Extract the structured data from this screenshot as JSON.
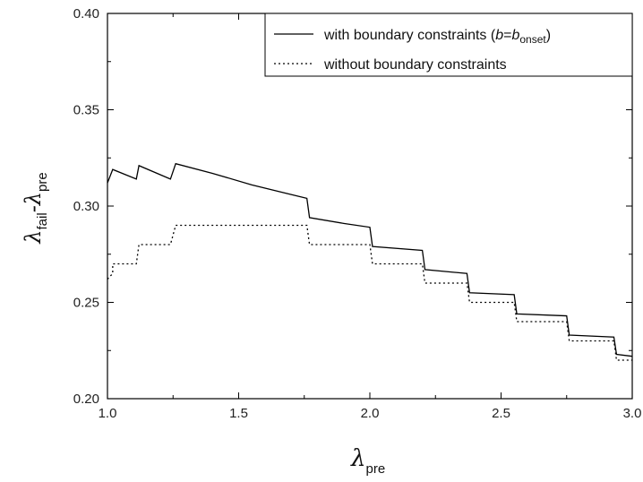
{
  "chart_data": {
    "type": "line",
    "x_label_main": "λ",
    "x_label_sub": "pre",
    "y_label_parts": [
      {
        "text": "λ",
        "italic": true,
        "sub": false
      },
      {
        "text": "fail",
        "italic": false,
        "sub": true
      },
      {
        "text": "-λ",
        "italic": true,
        "sub": false
      },
      {
        "text": "pre",
        "italic": false,
        "sub": true
      }
    ],
    "xlim": [
      1.0,
      3.0
    ],
    "ylim": [
      0.2,
      0.4
    ],
    "x_ticks": [
      "1.0",
      "1.5",
      "2.0",
      "2.5",
      "3.0"
    ],
    "y_ticks": [
      "0.20",
      "0.25",
      "0.30",
      "0.35",
      "0.40"
    ],
    "x_tick_values": [
      1.0,
      1.5,
      2.0,
      2.5,
      3.0
    ],
    "y_tick_values": [
      0.2,
      0.25,
      0.3,
      0.35,
      0.4
    ],
    "grid": false,
    "legend_position": "top-right",
    "series": [
      {
        "legend_label_plain": "with boundary constraints (",
        "legend_label_italic_a": "b",
        "legend_label_eq": "=",
        "legend_label_italic_b": "b",
        "legend_label_sub": "onset",
        "legend_label_close": ")",
        "style": "solid",
        "color": "#000000",
        "x": [
          1.0,
          1.02,
          1.11,
          1.12,
          1.24,
          1.26,
          1.4,
          1.55,
          1.7,
          1.76,
          1.77,
          1.9,
          2.0,
          2.01,
          2.2,
          2.21,
          2.37,
          2.38,
          2.55,
          2.56,
          2.75,
          2.76,
          2.93,
          2.94,
          3.0
        ],
        "y": [
          0.312,
          0.319,
          0.314,
          0.321,
          0.314,
          0.322,
          0.317,
          0.311,
          0.306,
          0.304,
          0.294,
          0.291,
          0.289,
          0.279,
          0.277,
          0.267,
          0.265,
          0.255,
          0.254,
          0.244,
          0.243,
          0.233,
          0.232,
          0.223,
          0.222
        ]
      },
      {
        "legend_label": "without boundary constraints",
        "style": "dotted",
        "color": "#000000",
        "x": [
          1.0,
          1.02,
          1.02,
          1.11,
          1.12,
          1.24,
          1.26,
          1.76,
          1.77,
          2.0,
          2.01,
          2.2,
          2.21,
          2.37,
          2.38,
          2.55,
          2.56,
          2.75,
          2.76,
          2.93,
          2.94,
          3.0
        ],
        "y": [
          0.262,
          0.265,
          0.27,
          0.27,
          0.28,
          0.28,
          0.29,
          0.29,
          0.28,
          0.28,
          0.27,
          0.27,
          0.26,
          0.26,
          0.25,
          0.25,
          0.24,
          0.24,
          0.23,
          0.23,
          0.22,
          0.22
        ]
      }
    ]
  }
}
